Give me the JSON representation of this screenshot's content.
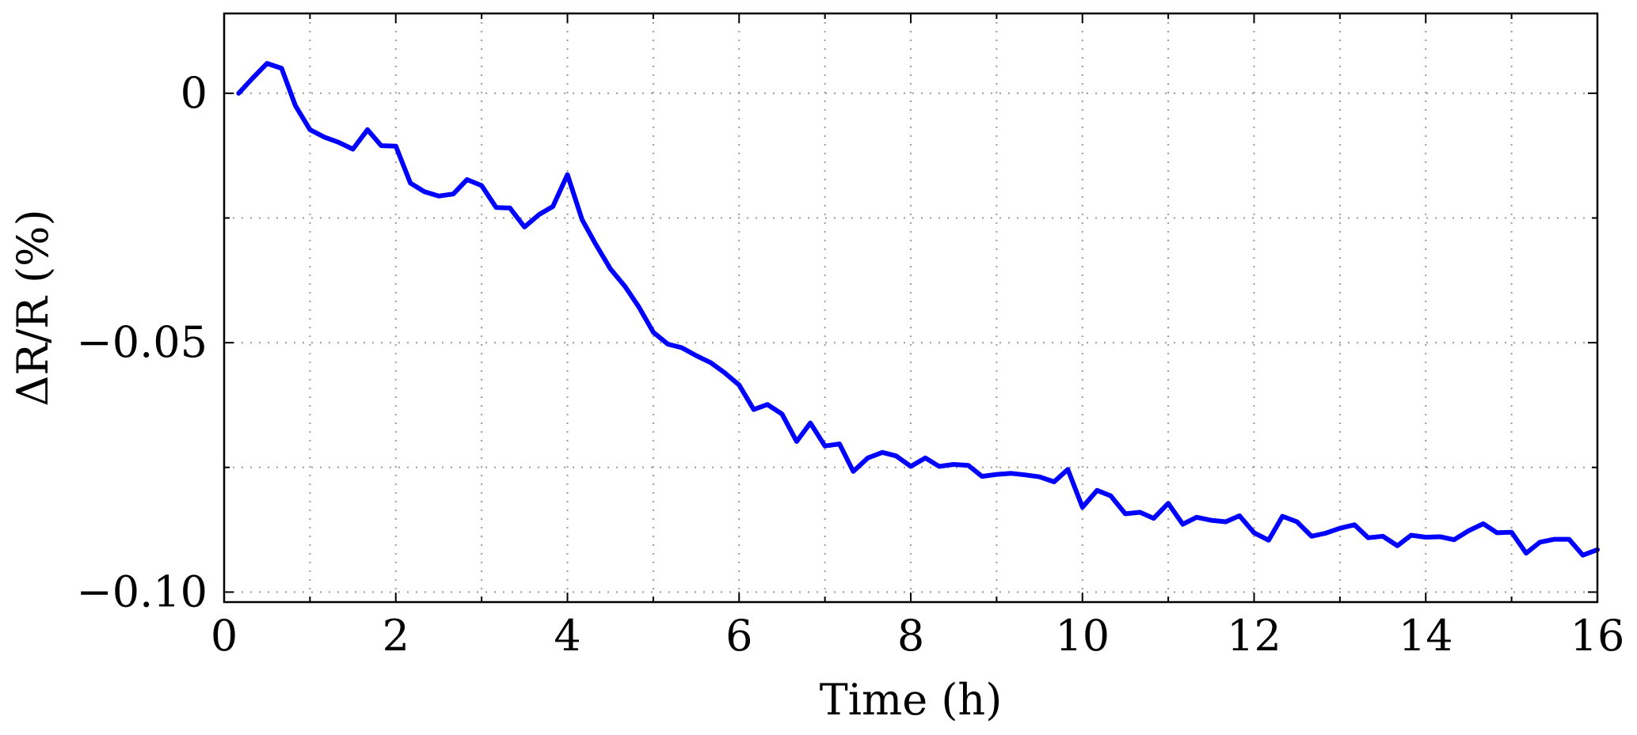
{
  "chart_data": {
    "type": "line",
    "title": "",
    "xlabel": "Time (h)",
    "ylabel": "ΔR/R (%)",
    "xlim": [
      0,
      16
    ],
    "ylim": [
      -0.102,
      0.016
    ],
    "x_ticks": [
      0,
      2,
      4,
      6,
      8,
      10,
      12,
      14,
      16
    ],
    "x_tick_labels": [
      "0",
      "2",
      "4",
      "6",
      "8",
      "10",
      "12",
      "14",
      "16"
    ],
    "y_ticks": [
      0,
      -0.05,
      -0.1
    ],
    "y_tick_labels": [
      "0",
      "−0.05",
      "−0.10"
    ],
    "y_grid": [
      0,
      -0.025,
      -0.05,
      -0.075,
      -0.1
    ],
    "grid": true,
    "legend": "none",
    "series": [
      {
        "color": "#0000ff",
        "x": [
          0.17,
          0.33,
          0.5,
          0.67,
          0.83,
          1.0,
          1.17,
          1.33,
          1.5,
          1.67,
          1.83,
          2.0,
          2.17,
          2.33,
          2.5,
          2.67,
          2.83,
          3.0,
          3.17,
          3.33,
          3.5,
          3.67,
          3.83,
          4.0,
          4.17,
          4.33,
          4.5,
          4.67,
          4.83,
          5.0,
          5.17,
          5.33,
          5.5,
          5.67,
          5.83,
          6.0,
          6.17,
          6.33,
          6.5,
          6.67,
          6.83,
          7.0,
          7.17,
          7.33,
          7.5,
          7.67,
          7.83,
          8.0,
          8.17,
          8.33,
          8.5,
          8.67,
          8.83,
          9.0,
          9.17,
          9.33,
          9.5,
          9.67,
          9.83,
          10.0,
          10.17,
          10.33,
          10.5,
          10.67,
          10.83,
          11.0,
          11.17,
          11.33,
          11.5,
          11.67,
          11.83,
          12.0,
          12.17,
          12.33,
          12.5,
          12.67,
          12.83,
          13.0,
          13.17,
          13.33,
          13.5,
          13.67,
          13.83,
          14.0,
          14.17,
          14.33,
          14.5,
          14.67,
          14.83,
          15.0,
          15.17,
          15.33,
          15.5,
          15.67,
          15.83,
          16.0
        ],
        "y": [
          0.0,
          0.003,
          0.006,
          0.005,
          -0.0025,
          -0.0073,
          -0.0088,
          -0.0098,
          -0.0112,
          -0.0073,
          -0.0105,
          -0.0106,
          -0.018,
          -0.0197,
          -0.0206,
          -0.0202,
          -0.0173,
          -0.0185,
          -0.0229,
          -0.023,
          -0.0268,
          -0.0243,
          -0.0227,
          -0.0163,
          -0.0253,
          -0.0303,
          -0.0352,
          -0.0387,
          -0.0428,
          -0.0479,
          -0.0503,
          -0.051,
          -0.0526,
          -0.054,
          -0.056,
          -0.0585,
          -0.0634,
          -0.0624,
          -0.0643,
          -0.0698,
          -0.0661,
          -0.0707,
          -0.0703,
          -0.0758,
          -0.0731,
          -0.072,
          -0.0727,
          -0.0748,
          -0.0731,
          -0.0748,
          -0.0744,
          -0.0746,
          -0.0768,
          -0.0764,
          -0.0762,
          -0.0765,
          -0.0769,
          -0.0779,
          -0.0754,
          -0.083,
          -0.0796,
          -0.0807,
          -0.0843,
          -0.084,
          -0.0852,
          -0.0822,
          -0.0864,
          -0.085,
          -0.0856,
          -0.0859,
          -0.0847,
          -0.0881,
          -0.0896,
          -0.0848,
          -0.0859,
          -0.0888,
          -0.0882,
          -0.0872,
          -0.0865,
          -0.0891,
          -0.0888,
          -0.0907,
          -0.0886,
          -0.089,
          -0.0889,
          -0.0895,
          -0.0877,
          -0.0863,
          -0.0881,
          -0.088,
          -0.0922,
          -0.09,
          -0.0894,
          -0.0894,
          -0.0926,
          -0.0915
        ]
      }
    ]
  }
}
